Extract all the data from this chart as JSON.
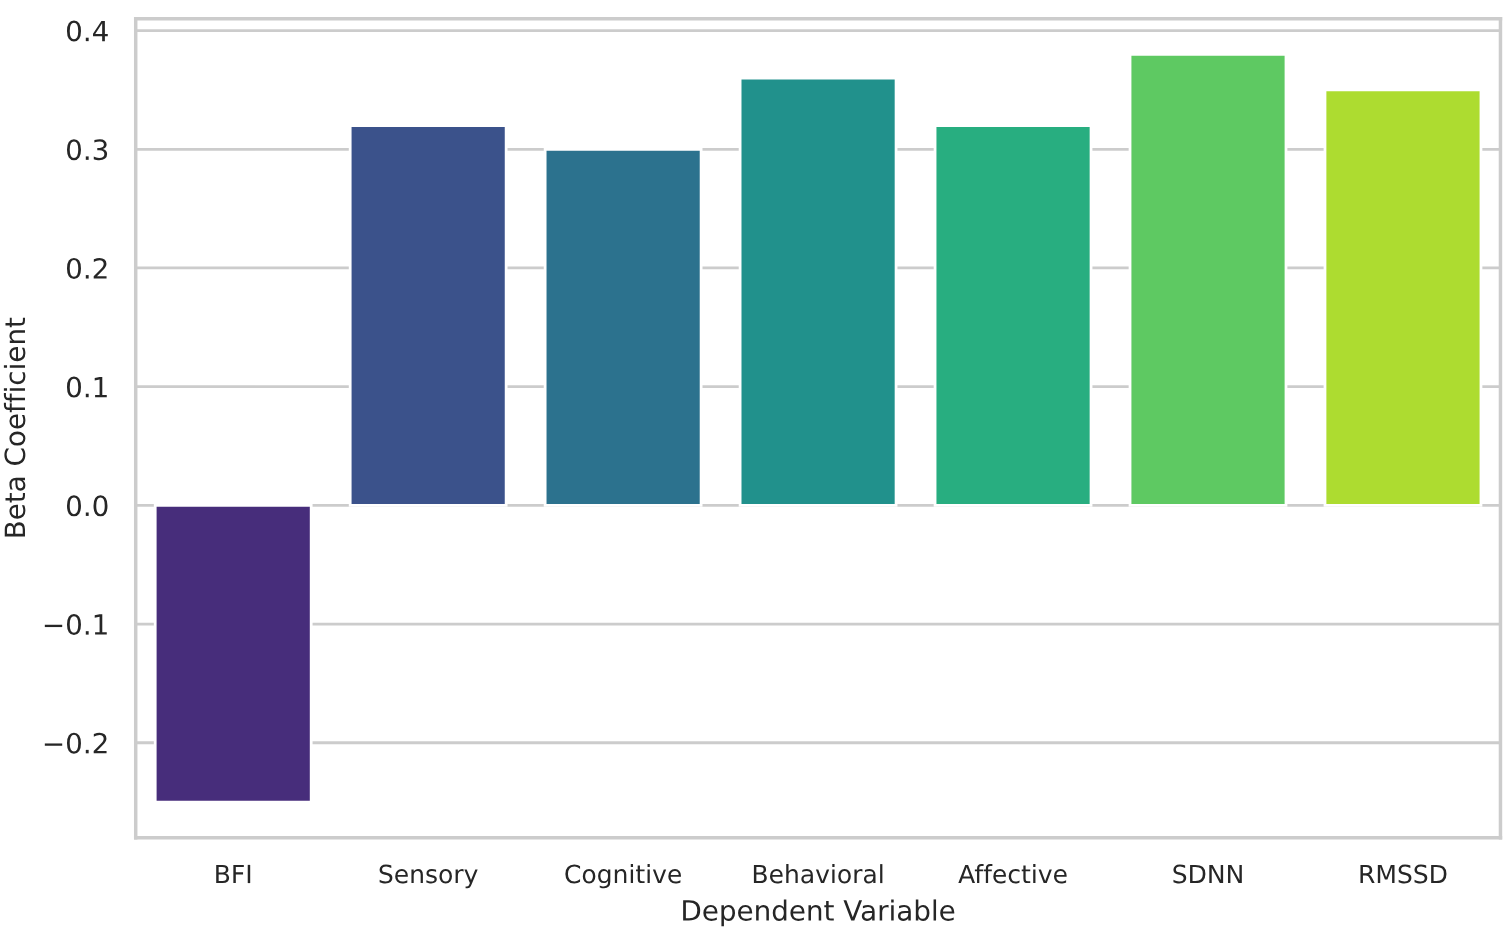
{
  "chart_data": {
    "type": "bar",
    "xlabel": "Dependent Variable",
    "ylabel": "Beta Coefficient",
    "categories": [
      "BFI",
      "Sensory",
      "Cognitive",
      "Behavioral",
      "Affective",
      "SDNN",
      "RMSSD"
    ],
    "values": [
      -0.25,
      0.32,
      0.3,
      0.36,
      0.32,
      0.38,
      0.35
    ],
    "colors": [
      "#472d7b",
      "#3b528b",
      "#2c728e",
      "#21918c",
      "#28ae80",
      "#5ec962",
      "#addc30"
    ],
    "ylim": [
      -0.28,
      0.41
    ],
    "yticks": [
      {
        "value": -0.2,
        "label": "−0.2"
      },
      {
        "value": -0.1,
        "label": "−0.1"
      },
      {
        "value": 0,
        "label": "0.0"
      },
      0.1,
      0.2,
      0.3,
      0.4
    ],
    "grid": "y"
  }
}
